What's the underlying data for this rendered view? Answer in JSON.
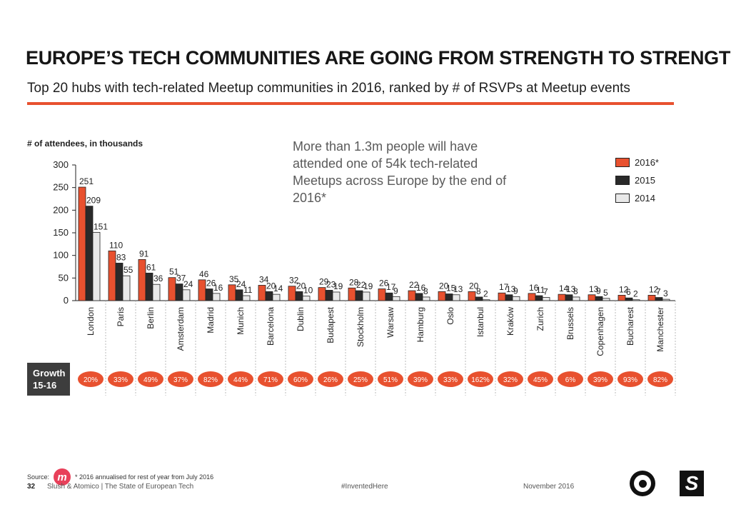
{
  "header": {
    "title": "EUROPE’S TECH COMMUNITIES ARE GOING FROM STRENGTH TO STRENGTH",
    "subtitle": "Top 20 hubs with tech-related Meetup communities in 2016, ranked by # of RSVPs at Meetup events"
  },
  "callout": "More than 1.3m people will have attended one of 54k tech-related Meetups across Europe by the end of 2016*",
  "growth_label_line1": "Growth",
  "growth_label_line2": "15-16",
  "legend": [
    {
      "label": "2016*",
      "color": "#e8512f"
    },
    {
      "label": "2015",
      "color": "#2a2a2a"
    },
    {
      "label": "2014",
      "color": "#e9e9e9"
    }
  ],
  "chart_data": {
    "type": "bar",
    "ylabel": "# of attendees, in thousands",
    "ylim": [
      0,
      300
    ],
    "yticks": [
      0,
      50,
      100,
      150,
      200,
      250,
      300
    ],
    "categories": [
      "London",
      "Paris",
      "Berlin",
      "Amsterdam",
      "Madrid",
      "Munich",
      "Barcelona",
      "Dublin",
      "Budapest",
      "Stockholm",
      "Warsaw",
      "Hamburg",
      "Oslo",
      "Istanbul",
      "Kraków",
      "Zurich",
      "Brussels",
      "Copenhagen",
      "Bucharest",
      "Manchester"
    ],
    "series": [
      {
        "name": "2016*",
        "color": "#e8512f",
        "values": [
          251,
          110,
          91,
          51,
          46,
          35,
          34,
          32,
          29,
          28,
          26,
          22,
          20,
          20,
          17,
          16,
          14,
          13,
          12,
          12
        ]
      },
      {
        "name": "2015",
        "color": "#2a2a2a",
        "values": [
          209,
          83,
          61,
          37,
          26,
          24,
          20,
          20,
          23,
          22,
          17,
          16,
          15,
          8,
          13,
          11,
          13,
          9,
          6,
          7
        ]
      },
      {
        "name": "2014",
        "color": "#e9e9e9",
        "values": [
          151,
          55,
          36,
          24,
          16,
          11,
          14,
          10,
          19,
          19,
          9,
          8,
          13,
          2,
          9,
          7,
          8,
          5,
          2,
          3
        ]
      }
    ],
    "growth": [
      "20%",
      "33%",
      "49%",
      "37%",
      "82%",
      "44%",
      "71%",
      "60%",
      "26%",
      "25%",
      "51%",
      "39%",
      "33%",
      "162%",
      "32%",
      "45%",
      "6%",
      "39%",
      "93%",
      "82%"
    ],
    "grid": false,
    "legend_position": "top-right"
  },
  "footer": {
    "source_label": "Source:",
    "source_logo": "m",
    "source_note": "* 2016 annualised for rest of year from July 2016",
    "page_number": "32",
    "report": "Slush & Atomico  |  The State of European Tech",
    "hashtag": "#InventedHere",
    "date": "November 2016",
    "slush_logo": "S"
  }
}
